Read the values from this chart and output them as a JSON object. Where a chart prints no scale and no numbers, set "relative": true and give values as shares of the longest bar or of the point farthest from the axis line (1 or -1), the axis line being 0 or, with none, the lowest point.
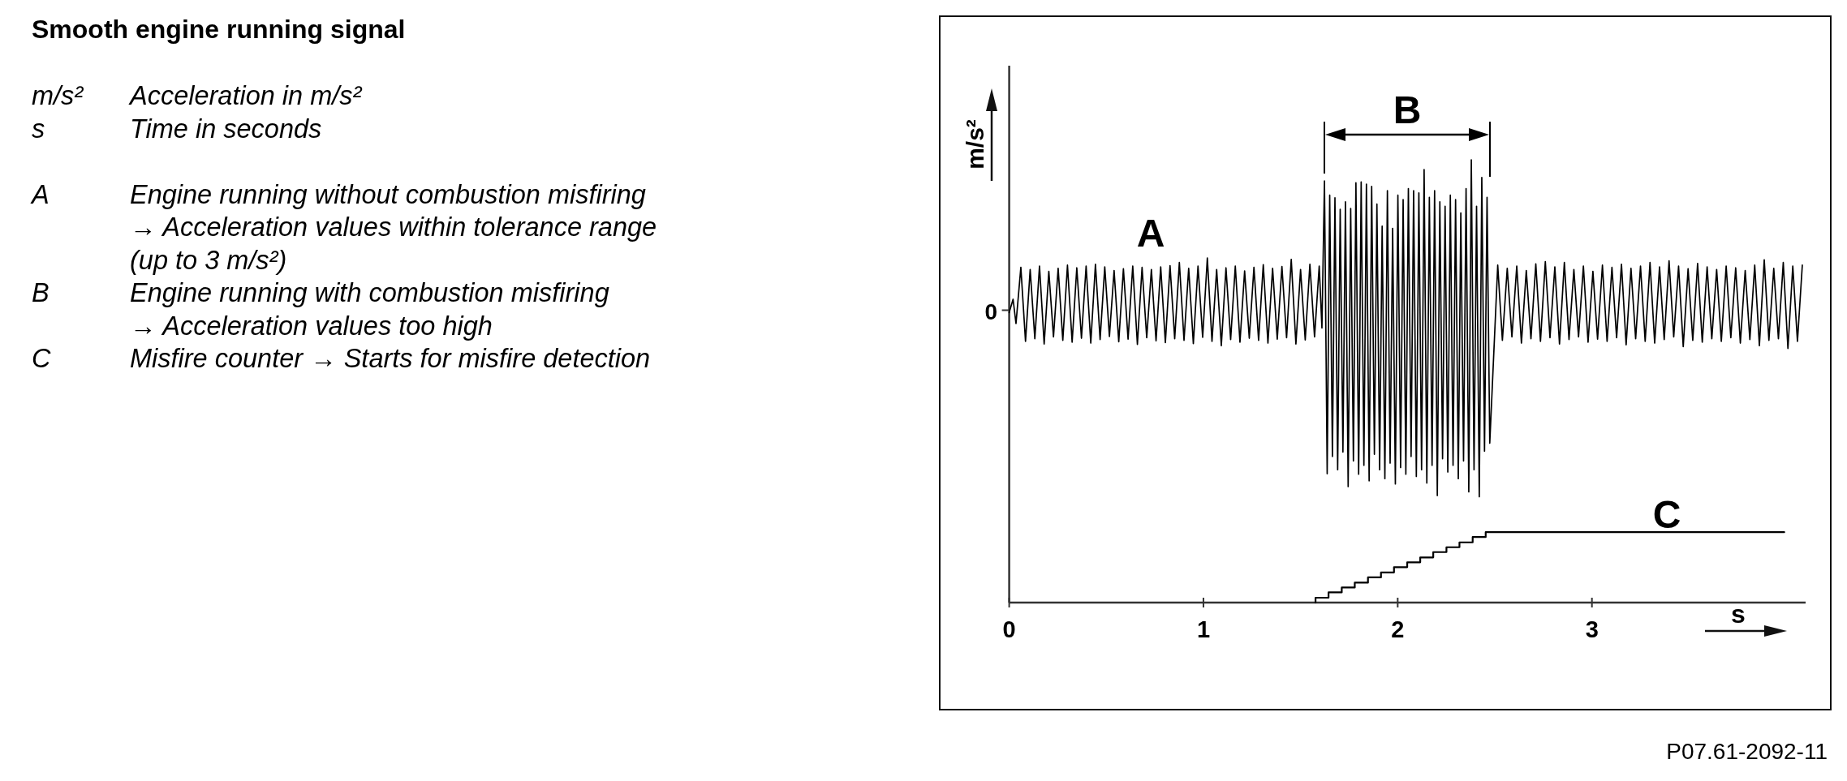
{
  "chart_data": {
    "type": "line",
    "title": "Smooth engine running signal",
    "xlabel": "s",
    "ylabel": "m/s²",
    "relative": true,
    "xlim": [
      0,
      4.1
    ],
    "xticks": [
      0,
      1,
      2,
      3
    ],
    "annotations": [
      "m/s²\tAcceleration in m/s²",
      "s\tTime in seconds\n",
      "A\tEngine running without combustion misfiring\n→ Acceleration values within tolerance range\n(up to 3 m/s²)",
      "B\tEngine running with combustion misfiring\n→ Acceleration values too high",
      "C\tMisfire counter  → Starts for misfire detection",
      "A",
      "B",
      "C",
      "0",
      "P07.61-2092-11"
    ],
    "series": [
      {
        "color": "#000000",
        "x": [
          0,
          0.02,
          0.035,
          0.06,
          0.084,
          0.108,
          0.132,
          0.156,
          0.18,
          0.204,
          0.228,
          0.252,
          0.276,
          0.3,
          0.324,
          0.348,
          0.372,
          0.396,
          0.42,
          0.444,
          0.468,
          0.492,
          0.516,
          0.54,
          0.564,
          0.588,
          0.612,
          0.636,
          0.66,
          0.684,
          0.708,
          0.732,
          0.756,
          0.78,
          0.804,
          0.828,
          0.852,
          0.876,
          0.9,
          0.924,
          0.948,
          0.972,
          0.996,
          1.02,
          1.044,
          1.068,
          1.092,
          1.116,
          1.14,
          1.164,
          1.188,
          1.212,
          1.236,
          1.26,
          1.284,
          1.308,
          1.332,
          1.356,
          1.38,
          1.404,
          1.428,
          1.452,
          1.476,
          1.5,
          1.524,
          1.548,
          1.572,
          1.596,
          1.61,
          1.623,
          1.637,
          1.65,
          1.664,
          1.677,
          1.691,
          1.704,
          1.718,
          1.731,
          1.745,
          1.758,
          1.772,
          1.785,
          1.799,
          1.812,
          1.826,
          1.839,
          1.853,
          1.866,
          1.88,
          1.893,
          1.907,
          1.92,
          1.934,
          1.947,
          1.961,
          1.974,
          1.988,
          2.001,
          2.015,
          2.028,
          2.042,
          2.055,
          2.069,
          2.082,
          2.096,
          2.109,
          2.123,
          2.136,
          2.15,
          2.163,
          2.177,
          2.19,
          2.204,
          2.217,
          2.231,
          2.244,
          2.258,
          2.271,
          2.285,
          2.298,
          2.312,
          2.325,
          2.339,
          2.352,
          2.366,
          2.379,
          2.393,
          2.406,
          2.42,
          2.433,
          2.447,
          2.46,
          2.474,
          2.515,
          2.539,
          2.564,
          2.588,
          2.613,
          2.637,
          2.662,
          2.686,
          2.711,
          2.735,
          2.76,
          2.784,
          2.809,
          2.833,
          2.858,
          2.882,
          2.907,
          2.931,
          2.956,
          2.98,
          3.005,
          3.029,
          3.054,
          3.078,
          3.103,
          3.127,
          3.152,
          3.176,
          3.201,
          3.225,
          3.25,
          3.274,
          3.299,
          3.323,
          3.348,
          3.372,
          3.397,
          3.421,
          3.446,
          3.47,
          3.495,
          3.519,
          3.544,
          3.568,
          3.593,
          3.617,
          3.642,
          3.666,
          3.691,
          3.715,
          3.74,
          3.764,
          3.789,
          3.813,
          3.838,
          3.862,
          3.887,
          3.911,
          3.936,
          3.96,
          3.985,
          4.009,
          4.034,
          4.058,
          4.083
        ],
        "values": [
          0.655,
          0.685,
          0.63,
          0.757,
          0.59,
          0.752,
          0.596,
          0.76,
          0.584,
          0.748,
          0.6,
          0.755,
          0.592,
          0.762,
          0.588,
          0.756,
          0.597,
          0.76,
          0.586,
          0.764,
          0.594,
          0.758,
          0.601,
          0.75,
          0.589,
          0.754,
          0.595,
          0.76,
          0.583,
          0.757,
          0.598,
          0.752,
          0.591,
          0.758,
          0.587,
          0.761,
          0.596,
          0.768,
          0.592,
          0.755,
          0.585,
          0.76,
          0.599,
          0.778,
          0.59,
          0.752,
          0.58,
          0.756,
          0.594,
          0.76,
          0.588,
          0.749,
          0.597,
          0.757,
          0.592,
          0.763,
          0.586,
          0.755,
          0.595,
          0.759,
          0.598,
          0.775,
          0.584,
          0.752,
          0.593,
          0.764,
          0.6,
          0.76,
          0.62,
          0.952,
          0.291,
          0.92,
          0.33,
          0.914,
          0.3,
          0.888,
          0.34,
          0.905,
          0.262,
          0.89,
          0.32,
          0.948,
          0.29,
          0.95,
          0.31,
          0.945,
          0.275,
          0.94,
          0.335,
          0.9,
          0.3,
          0.85,
          0.28,
          0.93,
          0.315,
          0.845,
          0.268,
          0.92,
          0.305,
          0.91,
          0.29,
          0.935,
          0.33,
          0.93,
          0.285,
          0.925,
          0.3,
          0.978,
          0.27,
          0.915,
          0.31,
          0.93,
          0.242,
          0.905,
          0.325,
          0.895,
          0.295,
          0.92,
          0.31,
          0.91,
          0.28,
          0.88,
          0.32,
          0.935,
          0.25,
          1,
          0.3,
          0.895,
          0.239,
          0.96,
          0.342,
          0.915,
          0.36,
          0.762,
          0.592,
          0.755,
          0.6,
          0.76,
          0.586,
          0.75,
          0.596,
          0.765,
          0.59,
          0.77,
          0.598,
          0.758,
          0.584,
          0.768,
          0.594,
          0.752,
          0.6,
          0.76,
          0.588,
          0.748,
          0.595,
          0.762,
          0.59,
          0.757,
          0.598,
          0.764,
          0.582,
          0.755,
          0.596,
          0.76,
          0.59,
          0.768,
          0.586,
          0.758,
          0.594,
          0.772,
          0.6,
          0.76,
          0.578,
          0.754,
          0.592,
          0.766,
          0.588,
          0.758,
          0.596,
          0.752,
          0.59,
          0.76,
          0.598,
          0.756,
          0.586,
          0.75,
          0.594,
          0.762,
          0.58,
          0.774,
          0.592,
          0.755,
          0.596,
          0.768,
          0.574,
          0.76,
          0.59,
          0.762
        ]
      },
      {
        "type": "step",
        "color": "#000000",
        "x": [
          1.577,
          1.577,
          1.644,
          1.712,
          1.779,
          1.847,
          1.914,
          1.981,
          2.049,
          2.116,
          2.183,
          2.251,
          2.318,
          2.386,
          2.453,
          3.99
        ],
        "values": [
          0,
          0.011,
          0.023,
          0.034,
          0.045,
          0.057,
          0.068,
          0.08,
          0.091,
          0.102,
          0.114,
          0.125,
          0.136,
          0.148,
          0.159,
          0.159
        ]
      }
    ]
  }
}
